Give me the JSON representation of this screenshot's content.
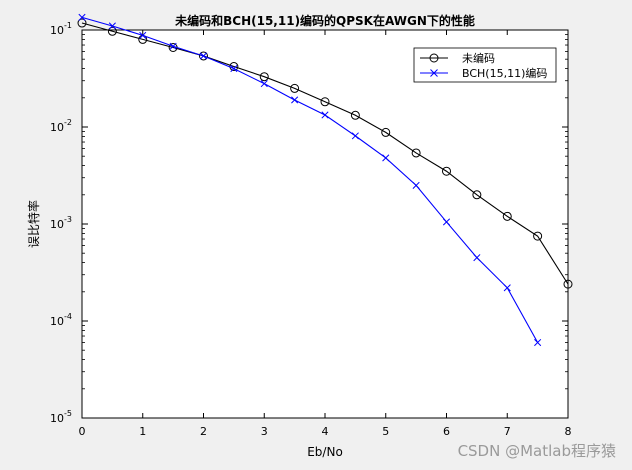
{
  "chart_data": {
    "type": "line",
    "title": "未编码和BCH(15,11)编码的QPSK在AWGN下的性能",
    "xlabel": "Eb/No",
    "ylabel": "误比特率",
    "xlim": [
      0,
      8
    ],
    "ylim": [
      1e-05,
      0.1
    ],
    "yscale": "log",
    "grid": false,
    "legend_position": "top-right",
    "x_ticks": [
      "0",
      "1",
      "2",
      "3",
      "4",
      "5",
      "6",
      "7",
      "8"
    ],
    "y_ticks": [
      {
        "base": "10",
        "exp": "-1"
      },
      {
        "base": "10",
        "exp": "-2"
      },
      {
        "base": "10",
        "exp": "-3"
      },
      {
        "base": "10",
        "exp": "-4"
      },
      {
        "base": "10",
        "exp": "-5"
      }
    ],
    "series": [
      {
        "name": "未编码",
        "color": "#000000",
        "marker": "circle",
        "x": [
          0,
          0.5,
          1,
          1.5,
          2,
          2.5,
          3,
          3.5,
          4,
          4.5,
          5,
          5.5,
          6,
          6.5,
          7,
          7.5,
          8
        ],
        "y": [
          0.118,
          0.097,
          0.08,
          0.066,
          0.054,
          0.042,
          0.033,
          0.025,
          0.0182,
          0.0132,
          0.0088,
          0.0054,
          0.0035,
          0.002,
          0.0012,
          0.00075,
          0.00024
        ]
      },
      {
        "name": "BCH(15,11)编码",
        "color": "#0000ff",
        "marker": "x",
        "x": [
          0,
          0.5,
          1,
          1.5,
          2,
          2.5,
          3,
          3.5,
          4,
          4.5,
          5,
          5.5,
          6,
          6.5,
          7,
          7.5
        ],
        "y": [
          0.135,
          0.11,
          0.088,
          0.068,
          0.054,
          0.04,
          0.028,
          0.019,
          0.0133,
          0.0081,
          0.0048,
          0.0025,
          0.00105,
          0.00045,
          0.00022,
          6e-05
        ]
      }
    ]
  },
  "watermark": "CSDN @Matlab程序猿"
}
